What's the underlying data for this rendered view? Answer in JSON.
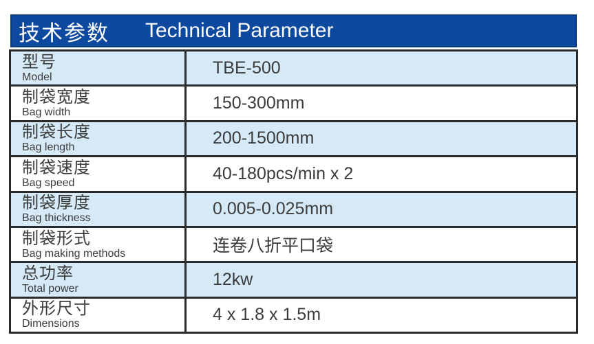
{
  "header": {
    "title_zh": "技术参数",
    "title_en": "Technical Parameter",
    "bg_color": "#0d4a9f",
    "text_color": "#ffffff"
  },
  "table": {
    "rows": [
      {
        "label_zh": "型号",
        "label_en": "Model",
        "value": "TBE-500"
      },
      {
        "label_zh": "制袋宽度",
        "label_en": "Bag width",
        "value": "150-300mm"
      },
      {
        "label_zh": "制袋长度",
        "label_en": "Bag length",
        "value": "200-1500mm"
      },
      {
        "label_zh": "制袋速度",
        "label_en": "Bag speed",
        "value": "40-180pcs/min x 2"
      },
      {
        "label_zh": "制袋厚度",
        "label_en": "Bag thickness",
        "value": "0.005-0.025mm"
      },
      {
        "label_zh": "制袋形式",
        "label_en": "Bag making methods",
        "value": "连卷八折平口袋"
      },
      {
        "label_zh": "总功率",
        "label_en": "Total power",
        "value": "12kw"
      },
      {
        "label_zh": "外形尺寸",
        "label_en": "Dimensions",
        "value": "4 x 1.8 x 1.5m"
      }
    ],
    "colors": {
      "row_highlight": "#d5e9f7",
      "row_plain": "#ffffff",
      "border": "#2b2a2a",
      "text": "#3b3b3b"
    }
  }
}
